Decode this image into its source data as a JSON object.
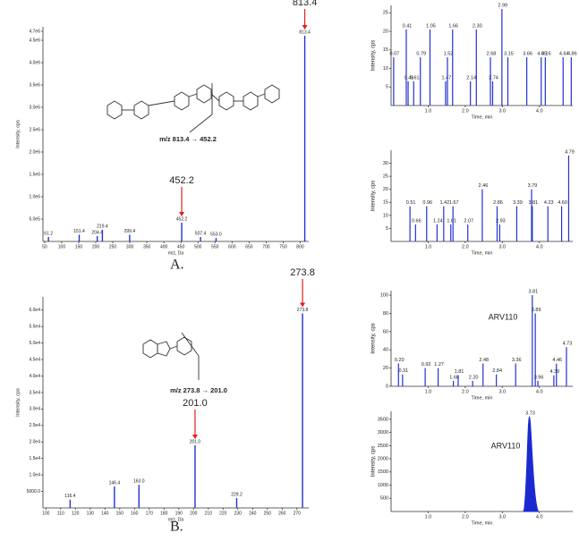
{
  "chart_data": [
    {
      "type": "spectrum",
      "panel_label": "A.",
      "xlabel": "m/z, Da",
      "ylabel": "Intensity, cps",
      "color": "#2233cc",
      "x": [
        61.2,
        151.4,
        204.4,
        219.4,
        299.4,
        452.2,
        507.4,
        553.0,
        813.4
      ],
      "x_labels": [
        "61.2",
        "151.4",
        "204.4",
        "219.4",
        "299.4",
        "452.2",
        "507.4",
        "553.0",
        "813.4"
      ],
      "values": [
        100000,
        150000,
        120000,
        260000,
        150000,
        420000,
        100000,
        80000,
        4600000
      ],
      "xlim": [
        45,
        825
      ],
      "ylim": [
        0,
        4800000
      ],
      "xticks": [
        50,
        100,
        150,
        200,
        250,
        300,
        350,
        400,
        450,
        500,
        550,
        600,
        650,
        700,
        750,
        800
      ],
      "yticks": [
        {
          "value": 500000,
          "label": "5.0e5"
        },
        {
          "value": 1000000,
          "label": "1.0e6"
        },
        {
          "value": 1500000,
          "label": "1.5e6"
        },
        {
          "value": 2000000,
          "label": "2.0e6"
        },
        {
          "value": 2500000,
          "label": "2.5e6"
        },
        {
          "value": 3000000,
          "label": "3.0e6"
        },
        {
          "value": 3500000,
          "label": "3.5e6"
        },
        {
          "value": 4000000,
          "label": "4.0e6"
        },
        {
          "value": 4500000,
          "label": "4.5e6"
        },
        {
          "value": 4700000,
          "label": "4.7e6"
        }
      ],
      "highlights": [
        {
          "x": 813.4,
          "label": "813.4"
        },
        {
          "x": 452.2,
          "label": "452.2"
        }
      ],
      "annotation": "m/z 813.4 → 452.2"
    },
    {
      "type": "chromatogram",
      "xlabel": "Time, min",
      "ylabel": "Intensity, cps",
      "color": "#2233cc",
      "x": [
        0.07,
        0.41,
        0.46,
        0.61,
        0.79,
        1.05,
        1.47,
        1.52,
        1.66,
        2.14,
        2.3,
        2.68,
        2.74,
        2.99,
        3.15,
        3.66,
        4.05,
        4.16,
        4.64,
        4.86
      ],
      "x_labels": [
        "0.07",
        "0.41",
        "0.46",
        "0.61",
        "0.79",
        "1.05",
        "1.47",
        "1.52",
        "1.66",
        "2.14",
        "2.30",
        "2.68",
        "2.74",
        "2.99",
        "3.15",
        "3.66",
        "4.05",
        "4.16",
        "4.64",
        "4.86"
      ],
      "values": [
        13,
        20.5,
        6.5,
        6.5,
        13,
        20.5,
        6.5,
        13,
        20.5,
        6.5,
        20.5,
        13,
        6.5,
        26,
        13,
        13,
        13,
        13,
        13,
        13
      ],
      "xlim": [
        0,
        4.9
      ],
      "ylim": [
        0,
        27
      ],
      "xticks": [
        {
          "value": 1,
          "label": "1.0"
        },
        {
          "value": 2,
          "label": "2.0"
        },
        {
          "value": 3,
          "label": "3.0"
        },
        {
          "value": 4,
          "label": "4.0"
        }
      ],
      "yticks": [
        5,
        10,
        15,
        20,
        25
      ]
    },
    {
      "type": "chromatogram",
      "xlabel": "Time, min",
      "ylabel": "Intensity, cps",
      "color": "#2233cc",
      "x": [
        0.51,
        0.66,
        0.96,
        1.24,
        1.42,
        1.61,
        1.67,
        2.07,
        2.46,
        2.86,
        2.93,
        3.39,
        3.79,
        3.81,
        4.23,
        4.6,
        4.79
      ],
      "x_labels": [
        "0.51",
        "0.66",
        "0.96",
        "1.24",
        "1.42",
        "1.61",
        "1.67",
        "2.07",
        "2.46",
        "2.86",
        "2.93",
        "3.39",
        "3.79",
        "3.81",
        "4.23",
        "4.60",
        "4.79"
      ],
      "values": [
        13.5,
        6.5,
        13.5,
        6.5,
        13.5,
        6.5,
        13.5,
        6.5,
        20,
        13.5,
        6.5,
        13.5,
        20,
        13.5,
        13.5,
        13.5,
        33
      ],
      "xlim": [
        0,
        4.9
      ],
      "ylim": [
        0,
        35
      ],
      "xticks": [
        {
          "value": 1,
          "label": "1.0"
        },
        {
          "value": 2,
          "label": "2.0"
        },
        {
          "value": 3,
          "label": "3.0"
        },
        {
          "value": 4,
          "label": "4.0"
        }
      ],
      "yticks": [
        5,
        10,
        15,
        20,
        25,
        30
      ]
    },
    {
      "type": "spectrum",
      "panel_label": "B.",
      "xlabel": "m/z, Da",
      "ylabel": "Intensity, cps",
      "color": "#2233cc",
      "x": [
        116.4,
        146.4,
        163.0,
        201.0,
        229.2,
        273.8
      ],
      "x_labels": [
        "116.4",
        "146.4",
        "163.0",
        "201.0",
        "229.2",
        "273.8"
      ],
      "values": [
        2500,
        6500,
        7000,
        19000,
        3000,
        59000
      ],
      "xlim": [
        98,
        278
      ],
      "ylim": [
        0,
        64000
      ],
      "xticks": [
        100,
        110,
        120,
        130,
        140,
        150,
        160,
        170,
        180,
        190,
        200,
        210,
        220,
        230,
        240,
        250,
        260,
        270
      ],
      "yticks": [
        {
          "value": 5000,
          "label": "5000.0"
        },
        {
          "value": 10000,
          "label": "1.0e4"
        },
        {
          "value": 15000,
          "label": "1.5e4"
        },
        {
          "value": 20000,
          "label": "2.0e4"
        },
        {
          "value": 25000,
          "label": "2.5e4"
        },
        {
          "value": 30000,
          "label": "3.0e4"
        },
        {
          "value": 35000,
          "label": "3.5e4"
        },
        {
          "value": 40000,
          "label": "4.0e4"
        },
        {
          "value": 45000,
          "label": "4.5e4"
        },
        {
          "value": 50000,
          "label": "5.0e4"
        },
        {
          "value": 55000,
          "label": "5.5e4"
        },
        {
          "value": 60000,
          "label": "6.0e4"
        }
      ],
      "highlights": [
        {
          "x": 273.8,
          "label": "273.8"
        },
        {
          "x": 201.0,
          "label": "201.0"
        }
      ],
      "annotation": "m/z 273.8 → 201.0"
    },
    {
      "type": "chromatogram",
      "xlabel": "Time, min",
      "ylabel": "Intensity, cps",
      "color": "#2233cc",
      "annotation": "ARV110",
      "x": [
        0.2,
        0.31,
        0.92,
        1.27,
        1.68,
        1.81,
        2.2,
        2.48,
        2.84,
        3.36,
        3.81,
        3.89,
        3.96,
        4.39,
        4.46,
        4.73
      ],
      "x_labels": [
        "0.20",
        "0.31",
        "0.92",
        "1.27",
        "1.68",
        "1.81",
        "2.20",
        "2.48",
        "2.84",
        "3.36",
        "3.81",
        "3.89",
        "3.96",
        "4.39",
        "4.46",
        "4.73"
      ],
      "values": [
        25,
        13,
        20,
        20,
        6,
        12,
        6,
        25,
        13,
        25,
        100,
        80,
        6,
        12,
        25,
        43
      ],
      "xlim": [
        0,
        4.9
      ],
      "ylim": [
        0,
        105
      ],
      "xticks": [
        {
          "value": 1,
          "label": "1.0"
        },
        {
          "value": 2,
          "label": "2.0"
        },
        {
          "value": 3,
          "label": "3.0"
        },
        {
          "value": 4,
          "label": "4.0"
        }
      ],
      "yticks": [
        0,
        20,
        40,
        60,
        80,
        100
      ]
    },
    {
      "type": "peak",
      "xlabel": "Time, min",
      "ylabel": "Intensity, cps",
      "color": "#1a2ad0",
      "annotation": "ARV110",
      "x": [
        3.73
      ],
      "x_labels": [
        "3.73"
      ],
      "values": [
        3600
      ],
      "xlim": [
        0,
        4.9
      ],
      "ylim": [
        0,
        3800
      ],
      "xticks": [
        {
          "value": 1,
          "label": "1.0"
        },
        {
          "value": 2,
          "label": "2.0"
        },
        {
          "value": 3,
          "label": "3.0"
        },
        {
          "value": 4,
          "label": "4.0"
        }
      ],
      "yticks": [
        500,
        1000,
        1500,
        2000,
        2500,
        3000,
        3500
      ]
    }
  ]
}
